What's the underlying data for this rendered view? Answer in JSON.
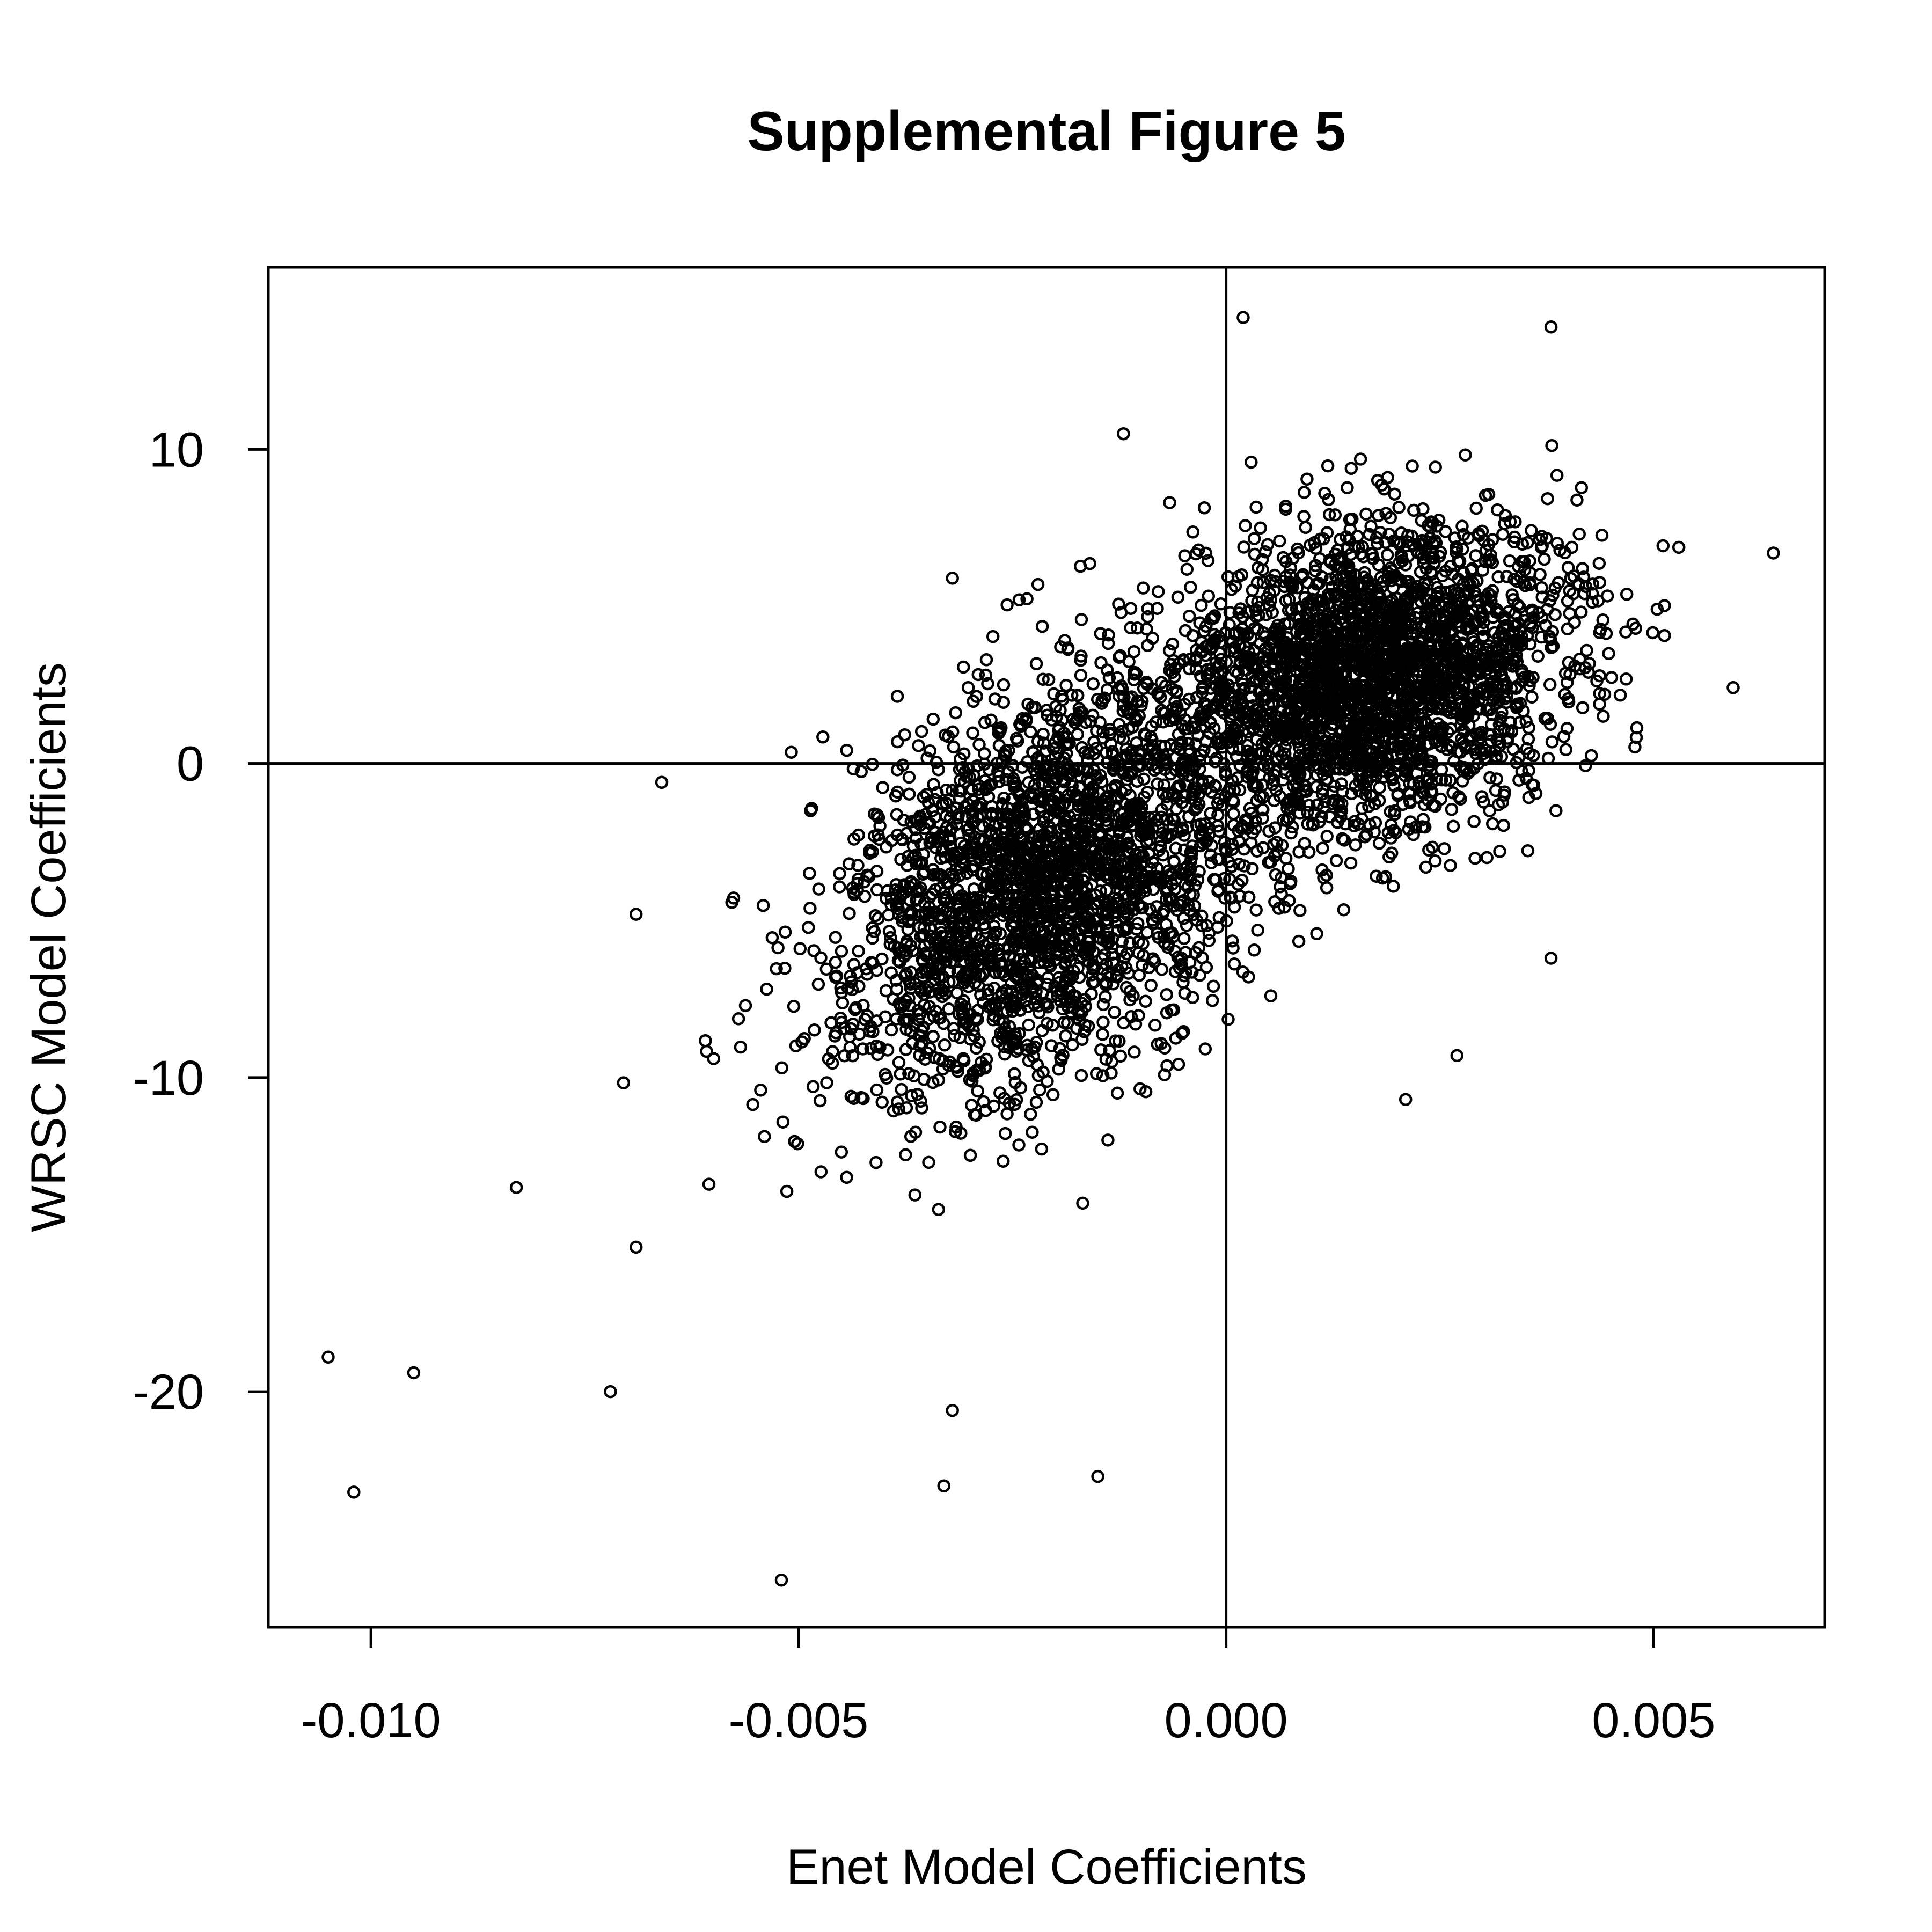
{
  "chart_data": {
    "type": "scatter",
    "title": "Supplemental Figure 5",
    "xlabel": "Enet Model Coefficients",
    "ylabel": "WRSC Model Coefficients",
    "xlim": [
      -0.0112,
      0.007
    ],
    "ylim": [
      -27.5,
      15.8
    ],
    "x_ticks": [
      -0.01,
      -0.005,
      0.0,
      0.005
    ],
    "x_tick_labels": [
      "-0.010",
      "-0.005",
      "0.000",
      "0.005"
    ],
    "y_ticks": [
      -20,
      -10,
      0,
      10
    ],
    "y_tick_labels": [
      "-20",
      "-10",
      "0",
      "10"
    ],
    "reference_lines": {
      "x": 0,
      "y": 0
    },
    "grid": false,
    "marker": "open-circle",
    "colors": {
      "points": "#000000",
      "axes": "#000000",
      "background": "#ffffff"
    },
    "clusters": [
      {
        "name": "",
        "n": 2600,
        "center": [
          -0.0021,
          -3.8
        ],
        "sd": [
          0.00125,
          3.4
        ],
        "corr": 0.45
      },
      {
        "name": "",
        "n": 2600,
        "center": [
          0.0018,
          2.9
        ],
        "sd": [
          0.00115,
          2.4
        ],
        "corr": 0.2
      }
    ],
    "notable_points": [
      {
        "x": -0.0105,
        "y": -18.9
      },
      {
        "x": -0.0102,
        "y": -23.2
      },
      {
        "x": -0.0095,
        "y": -19.4
      },
      {
        "x": -0.0083,
        "y": -13.5
      },
      {
        "x": -0.0072,
        "y": -20.0
      },
      {
        "x": -0.0069,
        "y": -15.4
      },
      {
        "x": -0.0069,
        "y": -4.8
      },
      {
        "x": -0.0066,
        "y": -0.6
      },
      {
        "x": -0.0052,
        "y": -26.0
      },
      {
        "x": -0.0033,
        "y": -23.0
      },
      {
        "x": -0.0032,
        "y": -20.6
      },
      {
        "x": -0.0015,
        "y": -22.7
      },
      {
        "x": -0.0012,
        "y": 10.5
      },
      {
        "x": 0.0002,
        "y": 14.2
      },
      {
        "x": 0.0038,
        "y": 13.9
      },
      {
        "x": 0.0064,
        "y": 6.7
      },
      {
        "x": 0.0027,
        "y": -9.3
      },
      {
        "x": 0.0038,
        "y": -6.2
      },
      {
        "x": 0.0032,
        "y": -2.8
      },
      {
        "x": 0.0021,
        "y": -10.7
      },
      {
        "x": -0.0032,
        "y": 5.9
      },
      {
        "x": -0.0022,
        "y": 5.7
      }
    ]
  }
}
